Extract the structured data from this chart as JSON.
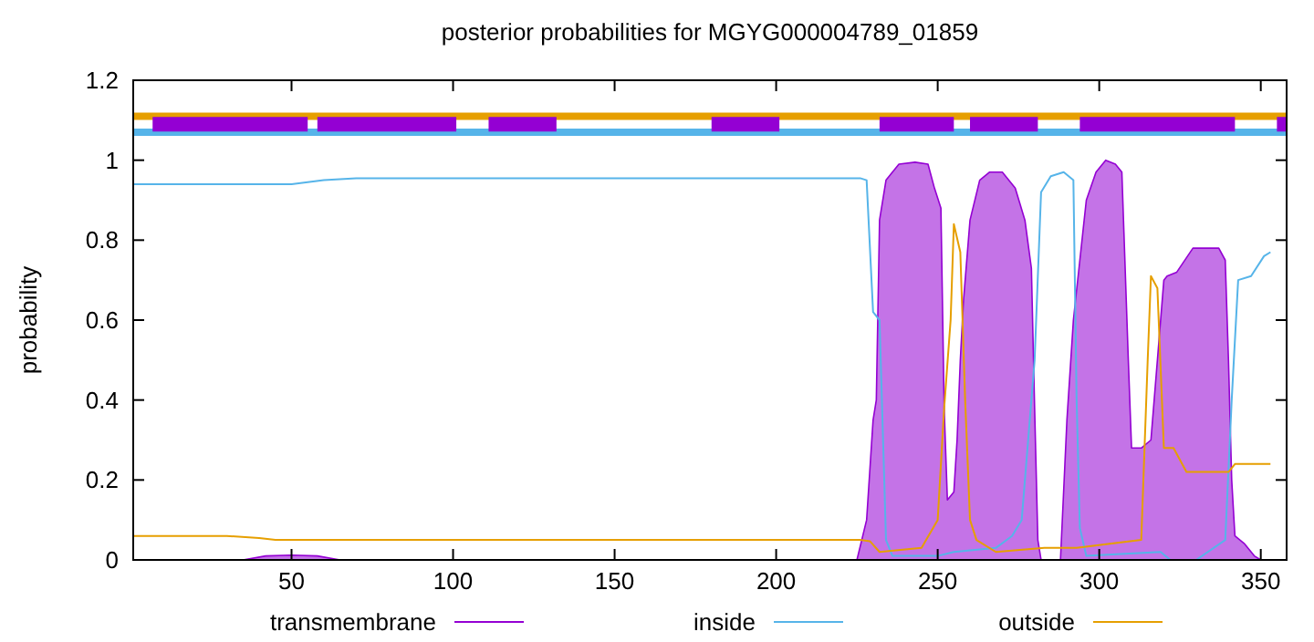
{
  "chart_data": {
    "type": "line",
    "title": "posterior probabilities for MGYG000004789_01859",
    "ylabel": "probability",
    "xlim": [
      1,
      358
    ],
    "ylim": [
      0,
      1.2
    ],
    "xticks": [
      50,
      100,
      150,
      200,
      250,
      300,
      350
    ],
    "yticks": [
      0,
      0.2,
      0.4,
      0.6,
      0.8,
      1,
      1.2
    ],
    "legend": "bottom",
    "grid": false,
    "series": [
      {
        "name": "transmembrane",
        "type": "area",
        "color": "#9400d3",
        "x": [
          1,
          35,
          42,
          50,
          58,
          65,
          70,
          180,
          225,
          228,
          230,
          231,
          232,
          234,
          238,
          243,
          247,
          249,
          251,
          252,
          253,
          255,
          256,
          257,
          258,
          260,
          263,
          266,
          270,
          274,
          277,
          279,
          280,
          281,
          282,
          285,
          288,
          290,
          292,
          294,
          296,
          299,
          302,
          305,
          307,
          309,
          310,
          313,
          316,
          318,
          320,
          321,
          324,
          329,
          333,
          337,
          339,
          340,
          341,
          342,
          345,
          348,
          350
        ],
        "values": [
          0,
          0,
          0.01,
          0.012,
          0.01,
          0,
          0,
          0,
          0,
          0.1,
          0.35,
          0.4,
          0.85,
          0.95,
          0.99,
          0.995,
          0.99,
          0.93,
          0.88,
          0.38,
          0.15,
          0.17,
          0.3,
          0.5,
          0.65,
          0.85,
          0.95,
          0.97,
          0.97,
          0.93,
          0.85,
          0.73,
          0.38,
          0.05,
          0,
          0,
          0,
          0.35,
          0.6,
          0.75,
          0.9,
          0.97,
          1,
          0.99,
          0.97,
          0.5,
          0.28,
          0.28,
          0.3,
          0.5,
          0.7,
          0.71,
          0.72,
          0.78,
          0.78,
          0.78,
          0.75,
          0.5,
          0.2,
          0.06,
          0.04,
          0.01,
          0
        ]
      },
      {
        "name": "inside",
        "color": "#56b4e9",
        "x": [
          1,
          50,
          60,
          70,
          226,
          228,
          230,
          232,
          234,
          236,
          240,
          250,
          255,
          268,
          273,
          276,
          278,
          280,
          282,
          285,
          289,
          292,
          293,
          294,
          296,
          319,
          322,
          330,
          339,
          341,
          343,
          347,
          351,
          353
        ],
        "values": [
          0.94,
          0.94,
          0.95,
          0.955,
          0.955,
          0.95,
          0.62,
          0.6,
          0.05,
          0.01,
          0.01,
          0.01,
          0.02,
          0.03,
          0.06,
          0.1,
          0.3,
          0.5,
          0.92,
          0.96,
          0.97,
          0.95,
          0.4,
          0.08,
          0.01,
          0.02,
          0,
          0,
          0.05,
          0.4,
          0.7,
          0.71,
          0.76,
          0.77
        ]
      },
      {
        "name": "outside",
        "color": "#e69f00",
        "x": [
          1,
          30,
          40,
          45,
          226,
          229,
          232,
          245,
          250,
          252,
          254,
          255,
          257,
          258.5,
          260,
          262,
          268,
          283,
          293,
          313,
          315,
          316,
          318,
          320,
          323,
          327,
          340,
          342,
          353
        ],
        "values": [
          0.06,
          0.06,
          0.055,
          0.05,
          0.05,
          0.047,
          0.02,
          0.03,
          0.1,
          0.38,
          0.6,
          0.84,
          0.77,
          0.4,
          0.1,
          0.05,
          0.02,
          0.03,
          0.03,
          0.05,
          0.5,
          0.71,
          0.68,
          0.28,
          0.28,
          0.22,
          0.22,
          0.24,
          0.24
        ]
      },
      {
        "color": "#e69f00",
        "x": [
          1,
          358
        ],
        "values": [
          1.11,
          1.11
        ]
      },
      {
        "color": "#56b4e9",
        "x": [
          1,
          358
        ],
        "values": [
          1.07,
          1.07
        ]
      },
      {
        "color": "#9400d3",
        "x": [
          7,
          55,
          56,
          58,
          101,
          102,
          111,
          132,
          133,
          180,
          201,
          202,
          232,
          255,
          256,
          260,
          281,
          282,
          294,
          342,
          343,
          355,
          358
        ],
        "values": [
          1.09,
          1.09,
          null,
          1.09,
          1.09,
          null,
          1.09,
          1.09,
          null,
          1.09,
          1.09,
          null,
          1.09,
          1.09,
          null,
          1.09,
          1.09,
          null,
          1.09,
          1.09,
          null,
          1.09,
          1.09
        ]
      }
    ]
  }
}
